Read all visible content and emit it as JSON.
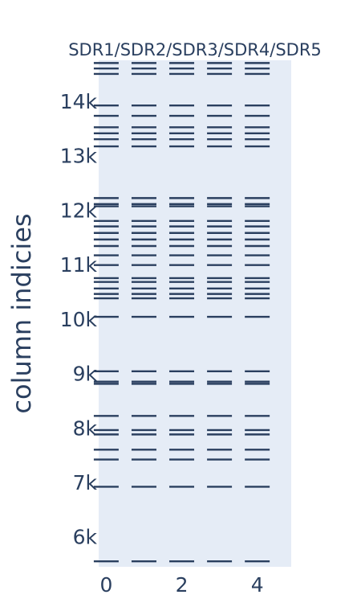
{
  "chart_data": {
    "type": "eventplot",
    "title": "SDR1/SDR2/SDR3/SDR4/SDR5",
    "xlabel": "",
    "ylabel": "column indicies",
    "series_names": [
      "SDR1",
      "SDR2",
      "SDR3",
      "SDR4",
      "SDR5"
    ],
    "x_positions": [
      0,
      1,
      2,
      3,
      4
    ],
    "xticks": [
      0,
      2,
      4
    ],
    "xtick_labels": [
      "0",
      "2",
      "4"
    ],
    "xlim": [
      -0.2,
      4.9
    ],
    "yticks": [
      6000,
      7000,
      8000,
      9000,
      10000,
      11000,
      12000,
      13000,
      14000
    ],
    "ytick_labels": [
      "6k",
      "7k",
      "8k",
      "9k",
      "10k",
      "11k",
      "12k",
      "13k",
      "14k"
    ],
    "ylim": [
      5450,
      14750
    ],
    "grid": false,
    "colors": {
      "plot_bg": "#e5ecf6",
      "event": "#2a3f5f",
      "text": "#2a3f5f"
    },
    "events": [
      5550,
      6920,
      7420,
      7600,
      7880,
      7960,
      8220,
      8810,
      8850,
      9040,
      10040,
      10380,
      10460,
      10560,
      10680,
      10750,
      10990,
      11170,
      11340,
      11460,
      11580,
      11700,
      11800,
      12070,
      12110,
      12220,
      13170,
      13300,
      13410,
      13520,
      13730,
      13920,
      14500,
      14600,
      14700
    ]
  }
}
